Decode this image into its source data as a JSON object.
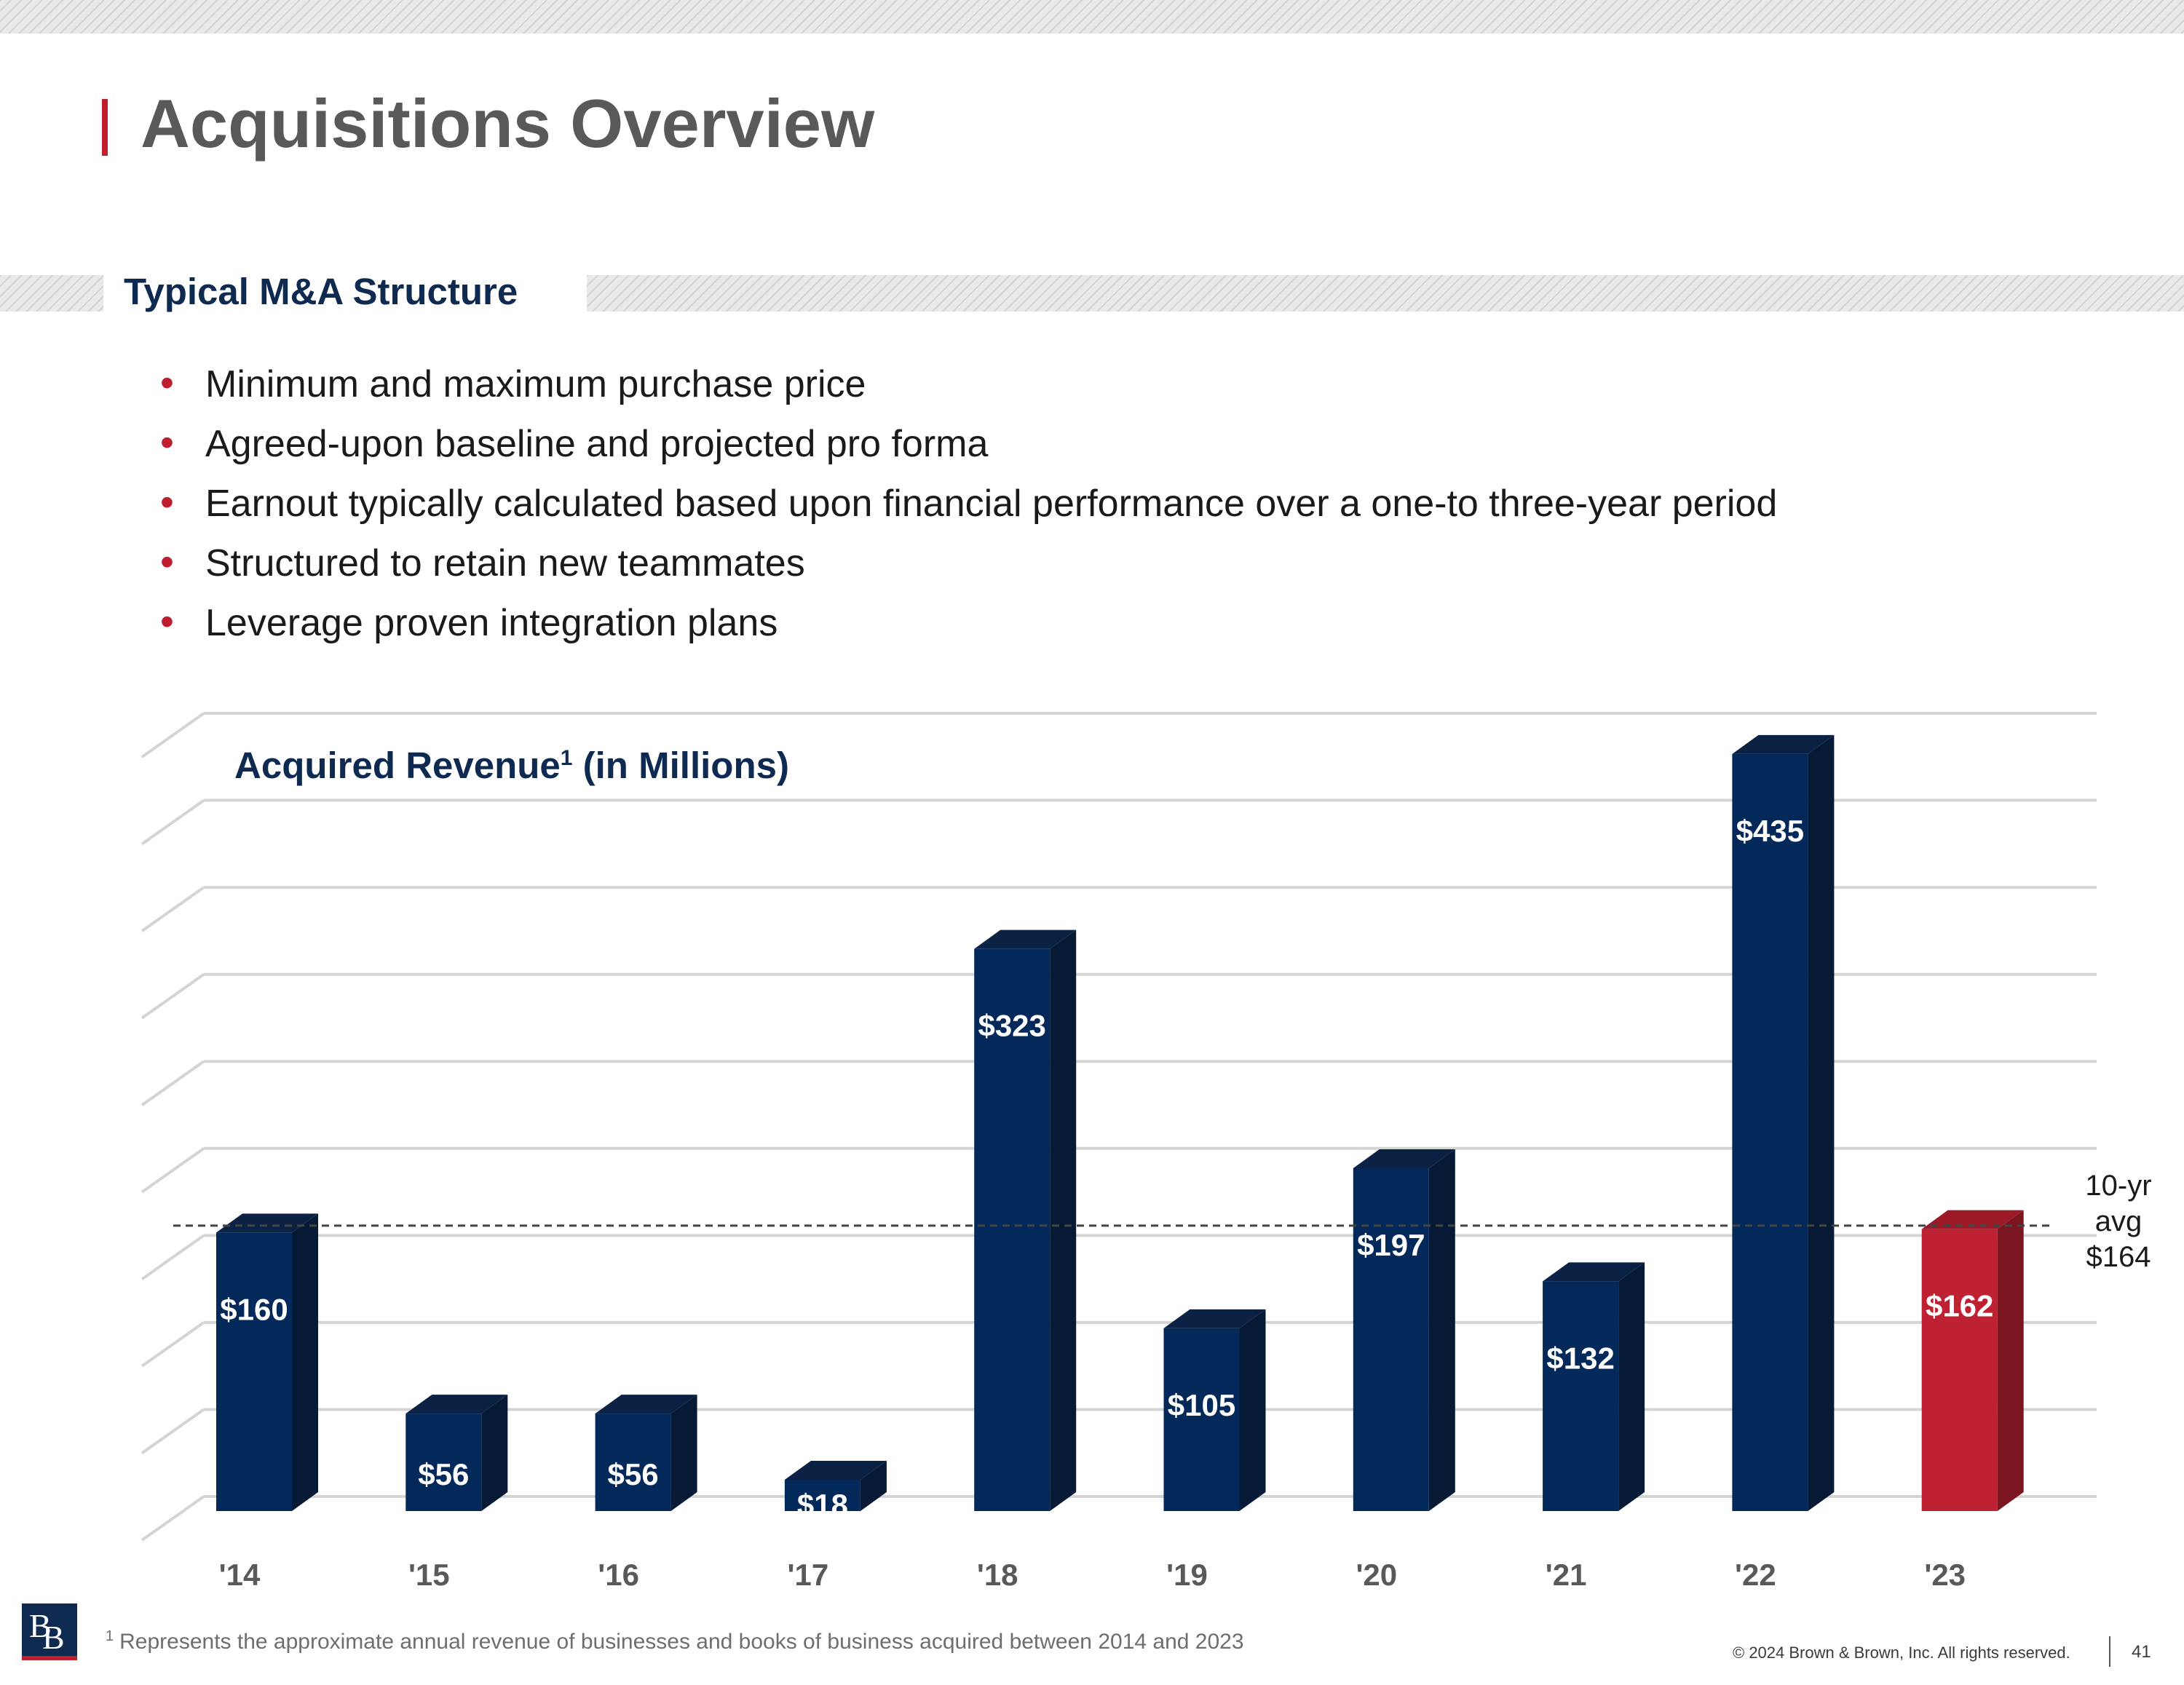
{
  "header": {
    "title": "Acquisitions Overview"
  },
  "section": {
    "heading": "Typical M&A Structure"
  },
  "bullets": [
    "Minimum and maximum purchase price",
    "Agreed-upon baseline and projected pro forma",
    "Earnout typically calculated based upon financial performance over a one-to three-year period",
    "Structured to retain new teammates",
    "Leverage proven integration plans"
  ],
  "chart_data": {
    "type": "bar",
    "title": "Acquired Revenue",
    "title_suffix": "(in Millions)",
    "title_footnote_marker": "1",
    "categories": [
      "'14",
      "'15",
      "'16",
      "'17",
      "'18",
      "'19",
      "'20",
      "'21",
      "'22",
      "'23"
    ],
    "values": [
      160,
      56,
      56,
      18,
      323,
      105,
      197,
      132,
      435,
      162
    ],
    "value_labels": [
      "$160",
      "$56",
      "$56",
      "$18",
      "$323",
      "$105",
      "$197",
      "$132",
      "$435",
      "$162"
    ],
    "highlight_index": 9,
    "colors": {
      "bar": "#03295a",
      "bar_top": "#0b2244",
      "bar_side": "#061a35",
      "highlight": "#be2132",
      "highlight_top": "#9c1a27",
      "highlight_side": "#7b1520",
      "grid": "#d4d4d4",
      "avg_line": "#444444"
    },
    "ylim": [
      0,
      450
    ],
    "grid": true,
    "gridline_step": 50,
    "average": {
      "value": 164,
      "label_lines": [
        "10-yr",
        "avg",
        "$164"
      ]
    },
    "xlabel": "",
    "ylabel": ""
  },
  "footer": {
    "footnote_marker": "1",
    "footnote": "Represents the approximate annual revenue of businesses and books of business acquired between 2014 and 2023",
    "copyright": "© 2024 Brown & Brown, Inc. All rights reserved.",
    "page_number": "41",
    "logo_letters": [
      "B",
      "B"
    ]
  }
}
